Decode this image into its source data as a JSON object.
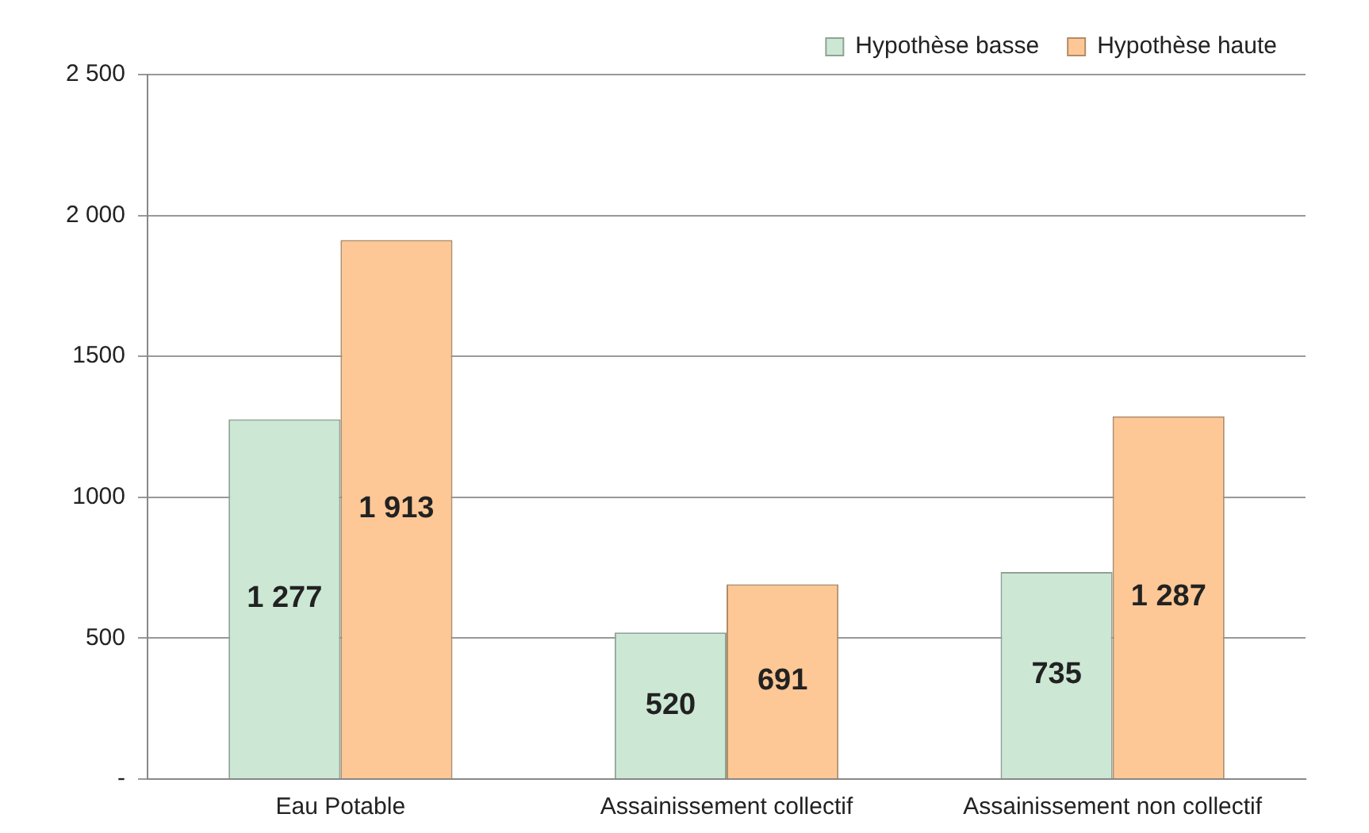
{
  "chart_data": {
    "type": "bar",
    "categories": [
      "Eau Potable",
      "Assainissement collectif",
      "Assainissement non collectif"
    ],
    "series": [
      {
        "name": "Hypothèse basse",
        "color": "#cce8d4",
        "values": [
          1277,
          520,
          735
        ],
        "value_labels": [
          "1 277",
          "520",
          "735"
        ]
      },
      {
        "name": "Hypothèse haute",
        "color": "#fdc896",
        "values": [
          1913,
          691,
          1287
        ],
        "value_labels": [
          "1 913",
          "691",
          "1 287"
        ]
      }
    ],
    "ylim": [
      0,
      2500
    ],
    "yticks": [
      {
        "value": 0,
        "label": "-"
      },
      500,
      1000,
      1500,
      {
        "value": 2000,
        "label": "2 000"
      },
      {
        "value": 2500,
        "label": "2 500"
      }
    ],
    "grid": "y",
    "legend": "top right"
  }
}
